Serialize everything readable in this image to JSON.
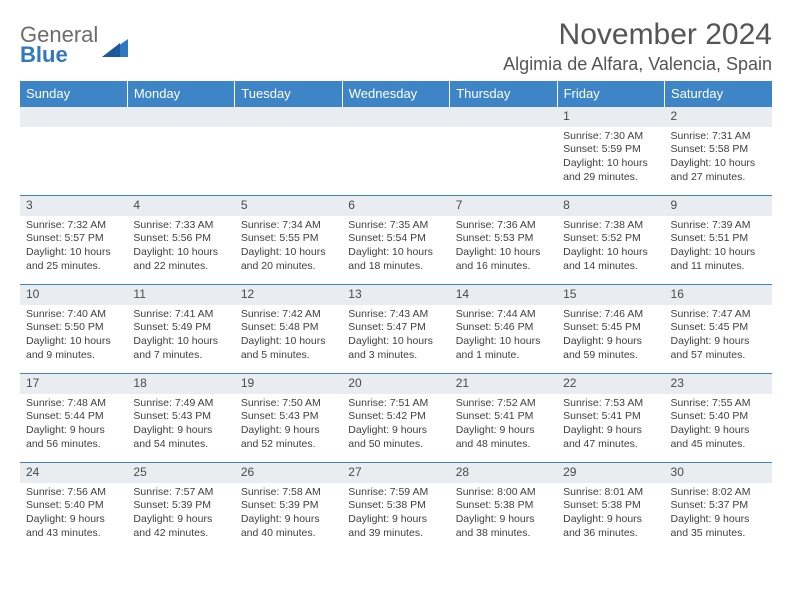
{
  "brand": {
    "line1": "General",
    "line2": "Blue"
  },
  "title": "November 2024",
  "location": "Algimia de Alfara, Valencia, Spain",
  "colors": {
    "header_bg": "#3d85c6",
    "header_text": "#ffffff",
    "daynum_bg": "#e9edf1",
    "border": "#3d85c6",
    "logo_gray": "#6d6d6d",
    "logo_blue": "#2f79c2"
  },
  "font": {
    "family": "Arial",
    "cell_size_pt": 8,
    "header_size_pt": 10,
    "title_size_pt": 22
  },
  "weekdays": [
    "Sunday",
    "Monday",
    "Tuesday",
    "Wednesday",
    "Thursday",
    "Friday",
    "Saturday"
  ],
  "weeks": [
    [
      null,
      null,
      null,
      null,
      null,
      {
        "n": "1",
        "sunrise": "Sunrise: 7:30 AM",
        "sunset": "Sunset: 5:59 PM",
        "daylight1": "Daylight: 10 hours",
        "daylight2": "and 29 minutes."
      },
      {
        "n": "2",
        "sunrise": "Sunrise: 7:31 AM",
        "sunset": "Sunset: 5:58 PM",
        "daylight1": "Daylight: 10 hours",
        "daylight2": "and 27 minutes."
      }
    ],
    [
      {
        "n": "3",
        "sunrise": "Sunrise: 7:32 AM",
        "sunset": "Sunset: 5:57 PM",
        "daylight1": "Daylight: 10 hours",
        "daylight2": "and 25 minutes."
      },
      {
        "n": "4",
        "sunrise": "Sunrise: 7:33 AM",
        "sunset": "Sunset: 5:56 PM",
        "daylight1": "Daylight: 10 hours",
        "daylight2": "and 22 minutes."
      },
      {
        "n": "5",
        "sunrise": "Sunrise: 7:34 AM",
        "sunset": "Sunset: 5:55 PM",
        "daylight1": "Daylight: 10 hours",
        "daylight2": "and 20 minutes."
      },
      {
        "n": "6",
        "sunrise": "Sunrise: 7:35 AM",
        "sunset": "Sunset: 5:54 PM",
        "daylight1": "Daylight: 10 hours",
        "daylight2": "and 18 minutes."
      },
      {
        "n": "7",
        "sunrise": "Sunrise: 7:36 AM",
        "sunset": "Sunset: 5:53 PM",
        "daylight1": "Daylight: 10 hours",
        "daylight2": "and 16 minutes."
      },
      {
        "n": "8",
        "sunrise": "Sunrise: 7:38 AM",
        "sunset": "Sunset: 5:52 PM",
        "daylight1": "Daylight: 10 hours",
        "daylight2": "and 14 minutes."
      },
      {
        "n": "9",
        "sunrise": "Sunrise: 7:39 AM",
        "sunset": "Sunset: 5:51 PM",
        "daylight1": "Daylight: 10 hours",
        "daylight2": "and 11 minutes."
      }
    ],
    [
      {
        "n": "10",
        "sunrise": "Sunrise: 7:40 AM",
        "sunset": "Sunset: 5:50 PM",
        "daylight1": "Daylight: 10 hours",
        "daylight2": "and 9 minutes."
      },
      {
        "n": "11",
        "sunrise": "Sunrise: 7:41 AM",
        "sunset": "Sunset: 5:49 PM",
        "daylight1": "Daylight: 10 hours",
        "daylight2": "and 7 minutes."
      },
      {
        "n": "12",
        "sunrise": "Sunrise: 7:42 AM",
        "sunset": "Sunset: 5:48 PM",
        "daylight1": "Daylight: 10 hours",
        "daylight2": "and 5 minutes."
      },
      {
        "n": "13",
        "sunrise": "Sunrise: 7:43 AM",
        "sunset": "Sunset: 5:47 PM",
        "daylight1": "Daylight: 10 hours",
        "daylight2": "and 3 minutes."
      },
      {
        "n": "14",
        "sunrise": "Sunrise: 7:44 AM",
        "sunset": "Sunset: 5:46 PM",
        "daylight1": "Daylight: 10 hours",
        "daylight2": "and 1 minute."
      },
      {
        "n": "15",
        "sunrise": "Sunrise: 7:46 AM",
        "sunset": "Sunset: 5:45 PM",
        "daylight1": "Daylight: 9 hours",
        "daylight2": "and 59 minutes."
      },
      {
        "n": "16",
        "sunrise": "Sunrise: 7:47 AM",
        "sunset": "Sunset: 5:45 PM",
        "daylight1": "Daylight: 9 hours",
        "daylight2": "and 57 minutes."
      }
    ],
    [
      {
        "n": "17",
        "sunrise": "Sunrise: 7:48 AM",
        "sunset": "Sunset: 5:44 PM",
        "daylight1": "Daylight: 9 hours",
        "daylight2": "and 56 minutes."
      },
      {
        "n": "18",
        "sunrise": "Sunrise: 7:49 AM",
        "sunset": "Sunset: 5:43 PM",
        "daylight1": "Daylight: 9 hours",
        "daylight2": "and 54 minutes."
      },
      {
        "n": "19",
        "sunrise": "Sunrise: 7:50 AM",
        "sunset": "Sunset: 5:43 PM",
        "daylight1": "Daylight: 9 hours",
        "daylight2": "and 52 minutes."
      },
      {
        "n": "20",
        "sunrise": "Sunrise: 7:51 AM",
        "sunset": "Sunset: 5:42 PM",
        "daylight1": "Daylight: 9 hours",
        "daylight2": "and 50 minutes."
      },
      {
        "n": "21",
        "sunrise": "Sunrise: 7:52 AM",
        "sunset": "Sunset: 5:41 PM",
        "daylight1": "Daylight: 9 hours",
        "daylight2": "and 48 minutes."
      },
      {
        "n": "22",
        "sunrise": "Sunrise: 7:53 AM",
        "sunset": "Sunset: 5:41 PM",
        "daylight1": "Daylight: 9 hours",
        "daylight2": "and 47 minutes."
      },
      {
        "n": "23",
        "sunrise": "Sunrise: 7:55 AM",
        "sunset": "Sunset: 5:40 PM",
        "daylight1": "Daylight: 9 hours",
        "daylight2": "and 45 minutes."
      }
    ],
    [
      {
        "n": "24",
        "sunrise": "Sunrise: 7:56 AM",
        "sunset": "Sunset: 5:40 PM",
        "daylight1": "Daylight: 9 hours",
        "daylight2": "and 43 minutes."
      },
      {
        "n": "25",
        "sunrise": "Sunrise: 7:57 AM",
        "sunset": "Sunset: 5:39 PM",
        "daylight1": "Daylight: 9 hours",
        "daylight2": "and 42 minutes."
      },
      {
        "n": "26",
        "sunrise": "Sunrise: 7:58 AM",
        "sunset": "Sunset: 5:39 PM",
        "daylight1": "Daylight: 9 hours",
        "daylight2": "and 40 minutes."
      },
      {
        "n": "27",
        "sunrise": "Sunrise: 7:59 AM",
        "sunset": "Sunset: 5:38 PM",
        "daylight1": "Daylight: 9 hours",
        "daylight2": "and 39 minutes."
      },
      {
        "n": "28",
        "sunrise": "Sunrise: 8:00 AM",
        "sunset": "Sunset: 5:38 PM",
        "daylight1": "Daylight: 9 hours",
        "daylight2": "and 38 minutes."
      },
      {
        "n": "29",
        "sunrise": "Sunrise: 8:01 AM",
        "sunset": "Sunset: 5:38 PM",
        "daylight1": "Daylight: 9 hours",
        "daylight2": "and 36 minutes."
      },
      {
        "n": "30",
        "sunrise": "Sunrise: 8:02 AM",
        "sunset": "Sunset: 5:37 PM",
        "daylight1": "Daylight: 9 hours",
        "daylight2": "and 35 minutes."
      }
    ]
  ]
}
